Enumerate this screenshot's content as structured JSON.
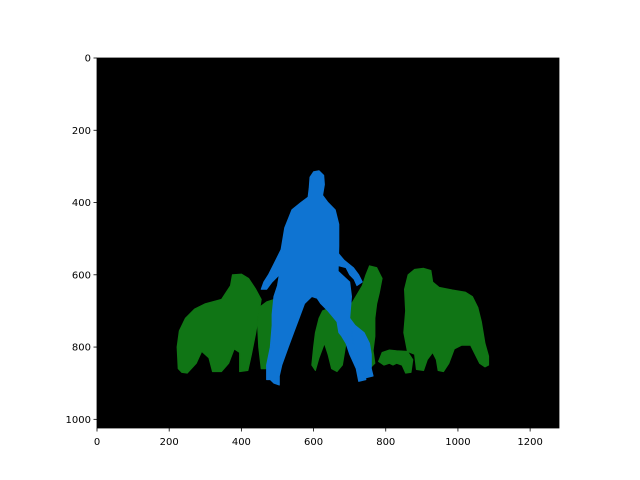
{
  "chart_data": {
    "type": "heatmap",
    "title": "",
    "xlabel": "",
    "ylabel": "",
    "xlim": [
      0,
      1280
    ],
    "ylim": [
      1024,
      0
    ],
    "x_ticks": [
      0,
      200,
      400,
      600,
      800,
      1000,
      1200
    ],
    "y_ticks": [
      0,
      200,
      400,
      600,
      800,
      1000
    ],
    "grid": false,
    "background_color": "#000000",
    "segments": [
      {
        "color": "#107515",
        "regions": [
          [
            [
              225,
              860
            ],
            [
              222,
              800
            ],
            [
              228,
              755
            ],
            [
              245,
              720
            ],
            [
              270,
              695
            ],
            [
              300,
              680
            ],
            [
              345,
              668
            ],
            [
              370,
              630
            ],
            [
              375,
              600
            ],
            [
              400,
              598
            ],
            [
              420,
              610
            ],
            [
              440,
              640
            ],
            [
              455,
              668
            ],
            [
              450,
              700
            ],
            [
              440,
              760
            ],
            [
              428,
              820
            ],
            [
              418,
              865
            ],
            [
              395,
              868
            ],
            [
              395,
              815
            ],
            [
              380,
              805
            ],
            [
              365,
              845
            ],
            [
              345,
              868
            ],
            [
              320,
              868
            ],
            [
              310,
              830
            ],
            [
              290,
              812
            ],
            [
              275,
              845
            ],
            [
              250,
              872
            ],
            [
              235,
              870
            ]
          ],
          [
            [
              450,
              690
            ],
            [
              470,
              675
            ],
            [
              500,
              665
            ],
            [
              510,
              700
            ],
            [
              505,
              740
            ],
            [
              495,
              790
            ],
            [
              485,
              835
            ],
            [
              470,
              860
            ],
            [
              455,
              860
            ],
            [
              448,
              800
            ],
            [
              445,
              740
            ]
          ],
          [
            [
              615,
              720
            ],
            [
              625,
              700
            ],
            [
              650,
              690
            ],
            [
              675,
              680
            ],
            [
              690,
              700
            ],
            [
              695,
              730
            ],
            [
              690,
              790
            ],
            [
              680,
              850
            ],
            [
              665,
              868
            ],
            [
              650,
              860
            ],
            [
              640,
              820
            ],
            [
              630,
              790
            ],
            [
              615,
              830
            ],
            [
              605,
              865
            ],
            [
              595,
              850
            ],
            [
              600,
              800
            ],
            [
              605,
              760
            ]
          ],
          [
            [
              690,
              690
            ],
            [
              705,
              680
            ],
            [
              720,
              655
            ],
            [
              735,
              630
            ],
            [
              745,
              600
            ],
            [
              755,
              575
            ],
            [
              775,
              580
            ],
            [
              790,
              610
            ],
            [
              782,
              650
            ],
            [
              775,
              680
            ],
            [
              770,
              720
            ],
            [
              770,
              770
            ],
            [
              765,
              810
            ],
            [
              770,
              845
            ],
            [
              755,
              860
            ],
            [
              740,
              835
            ],
            [
              730,
              790
            ]
          ],
          [
            [
              780,
              840
            ],
            [
              790,
              815
            ],
            [
              810,
              808
            ],
            [
              830,
              810
            ],
            [
              860,
              812
            ],
            [
              875,
              835
            ],
            [
              870,
              870
            ],
            [
              855,
              872
            ],
            [
              845,
              850
            ],
            [
              830,
              845
            ],
            [
              820,
              850
            ],
            [
              810,
              845
            ],
            [
              795,
              850
            ]
          ],
          [
            [
              860,
              812
            ],
            [
              850,
              760
            ],
            [
              855,
              700
            ],
            [
              852,
              640
            ],
            [
              862,
              600
            ],
            [
              880,
              585
            ],
            [
              905,
              582
            ],
            [
              925,
              588
            ],
            [
              930,
              620
            ],
            [
              948,
              635
            ],
            [
              985,
              642
            ],
            [
              1020,
              648
            ],
            [
              1040,
              660
            ],
            [
              1055,
              690
            ],
            [
              1065,
              730
            ],
            [
              1075,
              790
            ],
            [
              1085,
              825
            ],
            [
              1085,
              850
            ],
            [
              1075,
              855
            ],
            [
              1060,
              845
            ],
            [
              1045,
              815
            ],
            [
              1035,
              795
            ],
            [
              1010,
              795
            ],
            [
              990,
              805
            ],
            [
              975,
              845
            ],
            [
              960,
              868
            ],
            [
              945,
              865
            ],
            [
              940,
              835
            ],
            [
              930,
              815
            ],
            [
              915,
              835
            ],
            [
              905,
              865
            ],
            [
              885,
              862
            ],
            [
              880,
              820
            ]
          ]
        ]
      },
      {
        "color": "#0f74d2",
        "regions": [
          [
            [
              600,
              315
            ],
            [
              615,
              312
            ],
            [
              628,
              325
            ],
            [
              630,
              350
            ],
            [
              625,
              380
            ],
            [
              640,
              400
            ],
            [
              660,
              420
            ],
            [
              670,
              460
            ],
            [
              670,
              520
            ],
            [
              668,
              590
            ],
            [
              700,
              620
            ],
            [
              705,
              660
            ],
            [
              700,
              720
            ],
            [
              712,
              760
            ],
            [
              725,
              800
            ],
            [
              735,
              840
            ],
            [
              745,
              890
            ],
            [
              725,
              895
            ],
            [
              718,
              860
            ],
            [
              700,
              820
            ],
            [
              690,
              790
            ],
            [
              678,
              770
            ],
            [
              670,
              760
            ],
            [
              665,
              730
            ],
            [
              640,
              700
            ],
            [
              620,
              680
            ],
            [
              610,
              665
            ],
            [
              595,
              660
            ],
            [
              575,
              680
            ],
            [
              560,
              720
            ],
            [
              545,
              760
            ],
            [
              530,
              800
            ],
            [
              512,
              850
            ],
            [
              505,
              880
            ],
            [
              505,
              905
            ],
            [
              490,
              900
            ],
            [
              480,
              890
            ],
            [
              470,
              890
            ],
            [
              470,
              850
            ],
            [
              480,
              800
            ],
            [
              485,
              740
            ],
            [
              485,
              710
            ],
            [
              490,
              660
            ],
            [
              500,
              630
            ],
            [
              505,
              600
            ],
            [
              485,
              620
            ],
            [
              470,
              640
            ],
            [
              455,
              640
            ],
            [
              462,
              620
            ],
            [
              475,
              600
            ],
            [
              490,
              570
            ],
            [
              510,
              530
            ],
            [
              520,
              470
            ],
            [
              540,
              420
            ],
            [
              565,
              400
            ],
            [
              585,
              385
            ],
            [
              588,
              360
            ],
            [
              590,
              330
            ]
          ],
          [
            [
              668,
              540
            ],
            [
              685,
              560
            ],
            [
              710,
              580
            ],
            [
              725,
              600
            ],
            [
              735,
              620
            ],
            [
              720,
              630
            ],
            [
              712,
              612
            ],
            [
              700,
              600
            ],
            [
              690,
              580
            ],
            [
              670,
              575
            ]
          ],
          [
            [
              700,
              720
            ],
            [
              715,
              740
            ],
            [
              740,
              760
            ],
            [
              755,
              790
            ],
            [
              760,
              820
            ],
            [
              760,
              860
            ],
            [
              765,
              880
            ],
            [
              745,
              885
            ],
            [
              740,
              860
            ],
            [
              730,
              840
            ],
            [
              720,
              815
            ],
            [
              710,
              790
            ]
          ]
        ]
      }
    ]
  }
}
